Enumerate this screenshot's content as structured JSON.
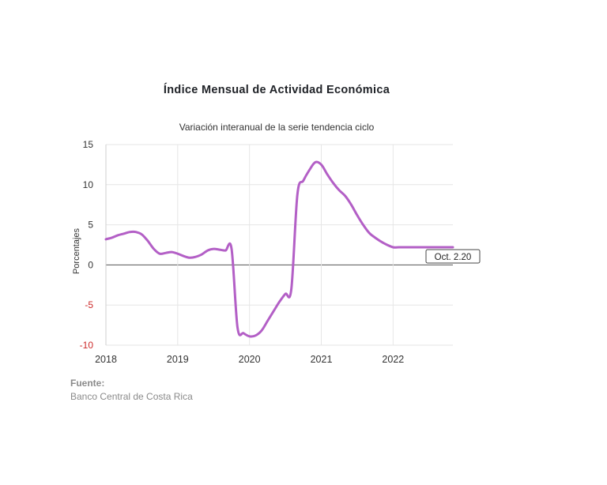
{
  "chart_data": {
    "type": "line",
    "title": "Índice Mensual de  Actividad Económica",
    "subtitle": "Variación interanual de la serie tendencia ciclo",
    "ylabel": "Porcentajes",
    "xlabel": "",
    "ylim": [
      -10,
      15
    ],
    "yticks": [
      15,
      10,
      5,
      0,
      -5,
      -10
    ],
    "xlim": [
      2018,
      2022.833
    ],
    "xticks": [
      2018,
      2019,
      2020,
      2021,
      2022
    ],
    "grid": true,
    "line_color": "#b35fc6",
    "negative_tick_color": "#cc2a2a",
    "series": [
      {
        "x": [
          2018.0,
          2018.083,
          2018.167,
          2018.25,
          2018.333,
          2018.417,
          2018.5,
          2018.583,
          2018.667,
          2018.75,
          2018.833,
          2018.917,
          2019.0,
          2019.083,
          2019.167,
          2019.25,
          2019.333,
          2019.417,
          2019.5,
          2019.583,
          2019.667,
          2019.75,
          2019.833,
          2019.917,
          2020.0,
          2020.083,
          2020.167,
          2020.25,
          2020.333,
          2020.417,
          2020.5,
          2020.583,
          2020.667,
          2020.75,
          2020.833,
          2020.917,
          2021.0,
          2021.083,
          2021.167,
          2021.25,
          2021.333,
          2021.417,
          2021.5,
          2021.583,
          2021.667,
          2021.75,
          2021.833,
          2021.917,
          2022.0,
          2022.083,
          2022.167,
          2022.25,
          2022.333,
          2022.417,
          2022.5,
          2022.583,
          2022.667,
          2022.75,
          2022.833
        ],
        "y": [
          3.2,
          3.4,
          3.7,
          3.9,
          4.1,
          4.1,
          3.8,
          3.0,
          2.0,
          1.4,
          1.5,
          1.6,
          1.4,
          1.1,
          0.9,
          1.0,
          1.3,
          1.8,
          2.0,
          1.9,
          1.8,
          2.0,
          -7.8,
          -8.5,
          -8.9,
          -8.8,
          -8.2,
          -7.0,
          -5.8,
          -4.6,
          -3.6,
          -3.0,
          8.8,
          10.5,
          11.8,
          12.8,
          12.5,
          11.3,
          10.2,
          9.3,
          8.6,
          7.5,
          6.2,
          5.0,
          4.0,
          3.4,
          2.9,
          2.5,
          2.2,
          2.2,
          2.2,
          2.2,
          2.2,
          2.2,
          2.2,
          2.2,
          2.2,
          2.2,
          2.2
        ]
      }
    ],
    "annotation": {
      "label": "Oct. 2.20",
      "x": 2022.833,
      "y": 2.2
    }
  },
  "source": {
    "label": "Fuente:",
    "text": "Banco Central de Costa Rica"
  }
}
